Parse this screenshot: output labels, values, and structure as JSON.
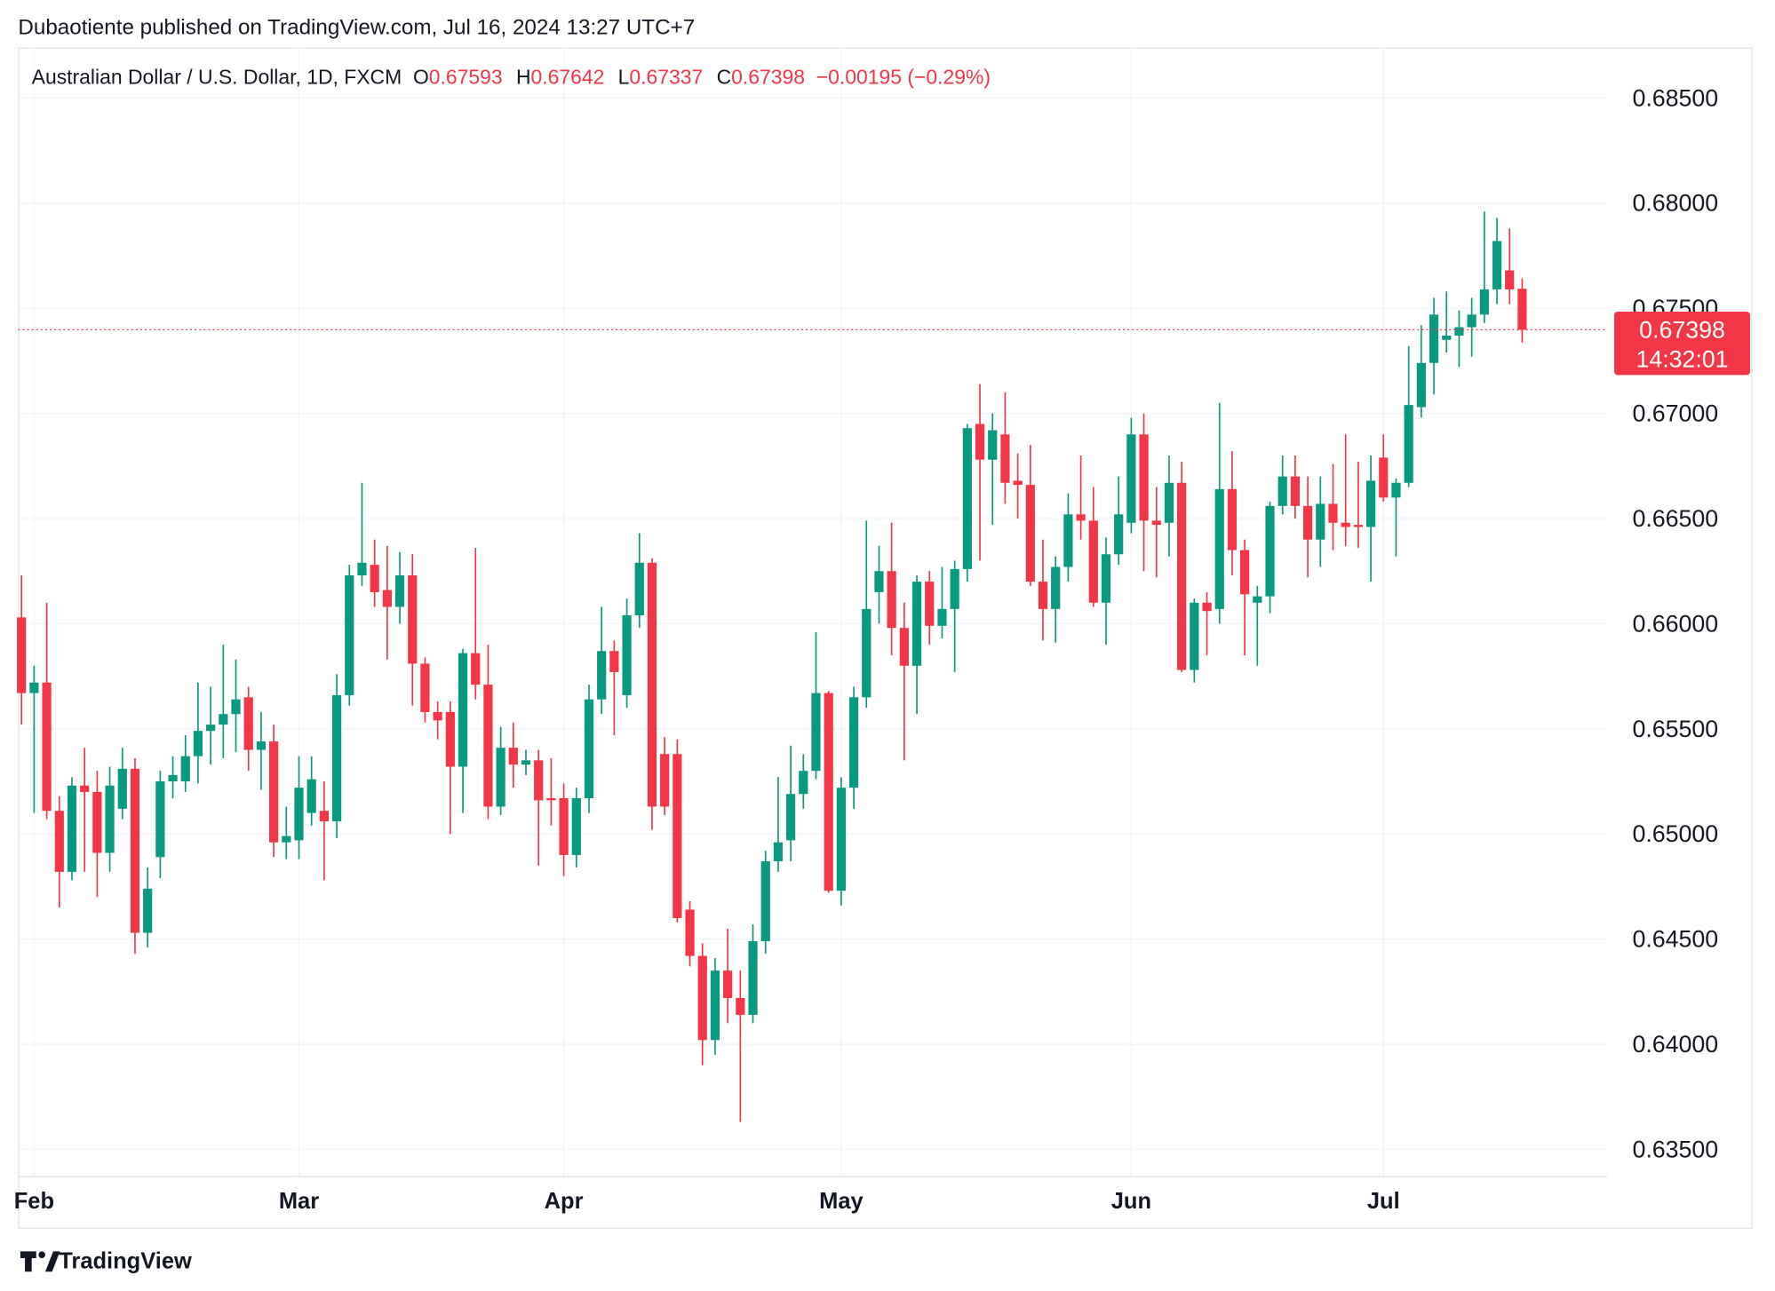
{
  "published": "Dubaotiente published on TradingView.com, Jul 16, 2024 13:27 UTC+7",
  "footer": "TradingView",
  "chart_data": {
    "type": "candlestick",
    "symbol": "Australian Dollar / U.S. Dollar, 1D, FXCM",
    "ohlc_legend": [
      {
        "label": "O",
        "value": "0.67593"
      },
      {
        "label": "H",
        "value": "0.67642"
      },
      {
        "label": "L",
        "value": "0.67337"
      },
      {
        "label": "C",
        "value": "0.67398"
      }
    ],
    "change": "−0.00195 (−0.29%)",
    "last_price": 0.67398,
    "countdown": "14:32:01",
    "up_color": "#089981",
    "down_color": "#f23645",
    "grid": true,
    "ylim": [
      0.6337,
      0.6874
    ],
    "yticks": [
      {
        "value": 0.635,
        "label": "0.63500"
      },
      {
        "value": 0.64,
        "label": "0.64000"
      },
      {
        "value": 0.645,
        "label": "0.64500"
      },
      {
        "value": 0.65,
        "label": "0.65000"
      },
      {
        "value": 0.655,
        "label": "0.65500"
      },
      {
        "value": 0.66,
        "label": "0.66000"
      },
      {
        "value": 0.665,
        "label": "0.66500"
      },
      {
        "value": 0.67,
        "label": "0.67000"
      },
      {
        "value": 0.675,
        "label": "0.67500"
      },
      {
        "value": 0.68,
        "label": "0.68000"
      },
      {
        "value": 0.685,
        "label": "0.68500"
      }
    ],
    "categories": [
      null,
      "Feb",
      null,
      null,
      null,
      null,
      null,
      null,
      null,
      null,
      null,
      null,
      null,
      null,
      null,
      null,
      null,
      null,
      null,
      null,
      null,
      null,
      "Mar",
      null,
      null,
      null,
      null,
      null,
      null,
      null,
      null,
      null,
      null,
      null,
      null,
      null,
      null,
      null,
      null,
      null,
      null,
      null,
      null,
      "Apr",
      null,
      null,
      null,
      null,
      null,
      null,
      null,
      null,
      null,
      null,
      null,
      null,
      null,
      null,
      null,
      null,
      null,
      null,
      null,
      null,
      null,
      "May",
      null,
      null,
      null,
      null,
      null,
      null,
      null,
      null,
      null,
      null,
      null,
      null,
      null,
      null,
      null,
      null,
      null,
      null,
      null,
      null,
      null,
      null,
      "Jun",
      null,
      null,
      null,
      null,
      null,
      null,
      null,
      null,
      null,
      null,
      null,
      null,
      null,
      null,
      null,
      null,
      null,
      null,
      null,
      "Jul",
      null,
      null,
      null,
      null,
      null,
      null,
      null,
      null,
      null,
      null,
      null
    ],
    "open": [
      0.6603,
      0.6567,
      0.6572,
      0.6511,
      0.6482,
      0.6523,
      0.652,
      0.6491,
      0.6512,
      0.6531,
      0.6453,
      0.6489,
      0.6525,
      0.6525,
      0.6537,
      0.6549,
      0.6552,
      0.6557,
      0.6565,
      0.654,
      0.6544,
      0.6496,
      0.6497,
      0.651,
      0.6511,
      0.6506,
      0.6566,
      0.6623,
      0.6628,
      0.6616,
      0.6608,
      0.6623,
      0.6581,
      0.6558,
      0.6558,
      0.6532,
      0.6586,
      0.6571,
      0.6513,
      0.6541,
      0.6533,
      0.6535,
      0.6517,
      0.6517,
      0.649,
      0.6517,
      0.6564,
      0.6587,
      0.6566,
      0.6604,
      0.6629,
      0.6538,
      0.6538,
      0.6464,
      0.6442,
      0.6402,
      0.6435,
      0.6422,
      0.6414,
      0.6449,
      0.6487,
      0.6497,
      0.6519,
      0.653,
      0.6567,
      0.6473,
      0.6522,
      0.6565,
      0.6615,
      0.6625,
      0.6598,
      0.658,
      0.662,
      0.6599,
      0.6607,
      0.6626,
      0.6695,
      0.6678,
      0.669,
      0.6668,
      0.6666,
      0.662,
      0.6607,
      0.6627,
      0.6652,
      0.6649,
      0.661,
      0.6633,
      0.6648,
      0.669,
      0.6649,
      0.6648,
      0.6667,
      0.6578,
      0.661,
      0.6607,
      0.6664,
      0.6635,
      0.661,
      0.6613,
      0.6656,
      0.667,
      0.6656,
      0.664,
      0.6657,
      0.6648,
      0.6647,
      0.6646,
      0.6679,
      0.666,
      0.6667,
      0.6703,
      0.6724,
      0.6735,
      0.6737,
      0.6741,
      0.6747,
      0.6759,
      0.6768,
      0.67593
    ],
    "high": [
      0.6623,
      0.658,
      0.661,
      0.6518,
      0.6527,
      0.6541,
      0.653,
      0.6532,
      0.6541,
      0.6536,
      0.6484,
      0.653,
      0.6537,
      0.6547,
      0.6572,
      0.657,
      0.659,
      0.6583,
      0.657,
      0.6558,
      0.6552,
      0.6513,
      0.6537,
      0.6537,
      0.6525,
      0.6576,
      0.6628,
      0.6667,
      0.664,
      0.6637,
      0.6634,
      0.6633,
      0.6584,
      0.6563,
      0.6563,
      0.6588,
      0.6636,
      0.659,
      0.6551,
      0.6553,
      0.654,
      0.654,
      0.6536,
      0.6524,
      0.6522,
      0.6571,
      0.6608,
      0.6592,
      0.6612,
      0.6643,
      0.6631,
      0.6546,
      0.6545,
      0.6468,
      0.6448,
      0.6441,
      0.6455,
      0.6435,
      0.6457,
      0.6492,
      0.6527,
      0.6542,
      0.6538,
      0.6596,
      0.6568,
      0.6527,
      0.657,
      0.6649,
      0.6637,
      0.6648,
      0.661,
      0.6623,
      0.6625,
      0.6627,
      0.663,
      0.6695,
      0.6714,
      0.67,
      0.671,
      0.6681,
      0.6685,
      0.664,
      0.6632,
      0.6662,
      0.668,
      0.6665,
      0.6641,
      0.667,
      0.6698,
      0.67,
      0.6665,
      0.668,
      0.6677,
      0.6612,
      0.6615,
      0.6705,
      0.6682,
      0.664,
      0.6618,
      0.6658,
      0.668,
      0.668,
      0.667,
      0.667,
      0.6676,
      0.669,
      0.6677,
      0.668,
      0.669,
      0.6669,
      0.6732,
      0.6742,
      0.6755,
      0.6758,
      0.6749,
      0.6755,
      0.6796,
      0.6793,
      0.6788,
      0.67642
    ],
    "low": [
      0.6552,
      0.651,
      0.6507,
      0.6465,
      0.6478,
      0.6482,
      0.647,
      0.6482,
      0.6507,
      0.6443,
      0.6446,
      0.6479,
      0.6517,
      0.652,
      0.6524,
      0.6533,
      0.6536,
      0.6539,
      0.653,
      0.6521,
      0.6489,
      0.6488,
      0.6488,
      0.6504,
      0.6478,
      0.6498,
      0.6561,
      0.6618,
      0.6608,
      0.6583,
      0.66,
      0.6561,
      0.6553,
      0.6545,
      0.65,
      0.651,
      0.6564,
      0.6507,
      0.6509,
      0.6522,
      0.6528,
      0.6485,
      0.6504,
      0.648,
      0.6484,
      0.651,
      0.6557,
      0.6547,
      0.656,
      0.6598,
      0.6502,
      0.6509,
      0.6458,
      0.6437,
      0.639,
      0.6395,
      0.641,
      0.6363,
      0.641,
      0.6443,
      0.6482,
      0.6487,
      0.6512,
      0.6526,
      0.6472,
      0.6466,
      0.6512,
      0.656,
      0.66,
      0.6585,
      0.6535,
      0.6557,
      0.659,
      0.6593,
      0.6577,
      0.662,
      0.663,
      0.6647,
      0.6657,
      0.665,
      0.6618,
      0.6592,
      0.6591,
      0.662,
      0.664,
      0.6608,
      0.659,
      0.6628,
      0.6643,
      0.6625,
      0.6622,
      0.6632,
      0.6577,
      0.6572,
      0.6585,
      0.66,
      0.6623,
      0.6585,
      0.658,
      0.6605,
      0.6652,
      0.665,
      0.6622,
      0.6627,
      0.6635,
      0.6637,
      0.6636,
      0.662,
      0.6658,
      0.6632,
      0.6665,
      0.6698,
      0.6709,
      0.6729,
      0.6722,
      0.6727,
      0.6743,
      0.6752,
      0.6752,
      0.67337
    ],
    "close": [
      0.6567,
      0.6572,
      0.6511,
      0.6482,
      0.6523,
      0.652,
      0.6491,
      0.6523,
      0.6531,
      0.6453,
      0.6474,
      0.6525,
      0.6528,
      0.6537,
      0.6549,
      0.6552,
      0.6557,
      0.6564,
      0.654,
      0.6544,
      0.6496,
      0.6499,
      0.6522,
      0.6526,
      0.6506,
      0.6566,
      0.6623,
      0.6629,
      0.6615,
      0.6608,
      0.6623,
      0.6581,
      0.6558,
      0.6554,
      0.6532,
      0.6586,
      0.6571,
      0.6513,
      0.6541,
      0.6533,
      0.6535,
      0.6516,
      0.6516,
      0.649,
      0.6517,
      0.6564,
      0.6587,
      0.6577,
      0.6604,
      0.6629,
      0.6513,
      0.6513,
      0.646,
      0.6442,
      0.6402,
      0.6435,
      0.6422,
      0.6414,
      0.6449,
      0.6487,
      0.6496,
      0.6519,
      0.653,
      0.6567,
      0.6473,
      0.6522,
      0.6565,
      0.6607,
      0.6625,
      0.6598,
      0.658,
      0.662,
      0.6599,
      0.6607,
      0.6626,
      0.6693,
      0.6678,
      0.6692,
      0.6667,
      0.6666,
      0.662,
      0.6607,
      0.6627,
      0.6652,
      0.6649,
      0.661,
      0.6633,
      0.6652,
      0.669,
      0.6649,
      0.6647,
      0.6667,
      0.6578,
      0.661,
      0.6606,
      0.6664,
      0.6635,
      0.6614,
      0.6613,
      0.6656,
      0.667,
      0.6656,
      0.664,
      0.6657,
      0.6648,
      0.6646,
      0.6646,
      0.6668,
      0.666,
      0.6667,
      0.6704,
      0.6724,
      0.6747,
      0.6737,
      0.6741,
      0.6747,
      0.6759,
      0.6782,
      0.6759,
      0.67398
    ]
  }
}
